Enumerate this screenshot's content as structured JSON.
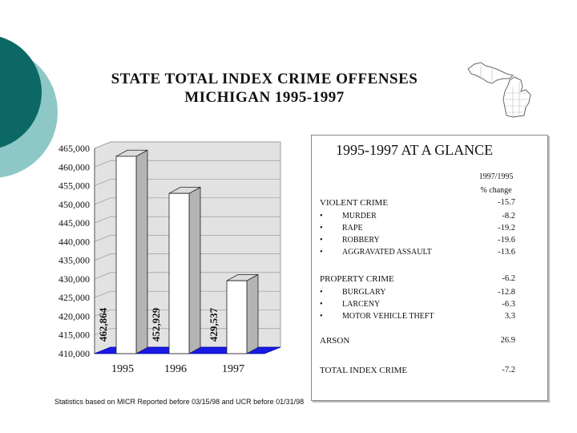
{
  "title": {
    "line1": "STATE TOTAL INDEX CRIME OFFENSES",
    "line2": "MICHIGAN 1995-1997"
  },
  "colors": {
    "teal_dark": "#0c6864",
    "teal_light": "#8ec8c6",
    "wall": "#e2e2e2",
    "floor": "#1a1ae6",
    "bar_face": "#ffffff",
    "bar_side": "#b4b4b4",
    "bar_top": "#dcdcdc"
  },
  "chart_data": {
    "type": "bar",
    "title": "",
    "categories": [
      "1995",
      "1996",
      "1997"
    ],
    "values": [
      462864,
      452929,
      429537
    ],
    "value_labels": [
      "462,864",
      "452,929",
      "429,537"
    ],
    "ylim": [
      410000,
      465000
    ],
    "yticks": [
      410000,
      415000,
      420000,
      425000,
      430000,
      435000,
      440000,
      445000,
      450000,
      455000,
      460000,
      465000
    ],
    "ytick_labels": [
      "410,000",
      "415,000",
      "420,000",
      "425,000",
      "430,000",
      "435,000",
      "440,000",
      "445,000",
      "450,000",
      "455,000",
      "460,000",
      "465,000"
    ],
    "xlabel": "",
    "ylabel": "",
    "grid": true
  },
  "glance": {
    "title": "1995-1997 AT A GLANCE",
    "header_line1": "1997/1995",
    "header_line2": "% change",
    "rows": [
      {
        "kind": "cat",
        "label": "VIOLENT CRIME",
        "value": "-15.7"
      },
      {
        "kind": "sub",
        "bullet": "•",
        "label": "MURDER",
        "value": "-8.2"
      },
      {
        "kind": "sub",
        "bullet": "•",
        "label": "RAPE",
        "value": "-19.2"
      },
      {
        "kind": "sub",
        "bullet": "•",
        "label": "ROBBERY",
        "value": "-19.6"
      },
      {
        "kind": "sub",
        "bullet": "•",
        "label": "AGGRAVATED ASSAULT",
        "value": "-13.6"
      },
      {
        "kind": "cat",
        "label": "PROPERTY CRIME",
        "value": "-6.2"
      },
      {
        "kind": "sub",
        "bullet": "•",
        "label": "BURGLARY",
        "value": "-12.8"
      },
      {
        "kind": "sub",
        "bullet": "•",
        "label": "LARCENY",
        "value": "-6.3"
      },
      {
        "kind": "sub",
        "bullet": "•",
        "label": "MOTOR VEHICLE THEFT",
        "value": "3.3"
      },
      {
        "kind": "cat",
        "label": "ARSON",
        "value": "26.9"
      },
      {
        "kind": "cat",
        "label": "TOTAL INDEX CRIME",
        "value": "-7.2"
      }
    ]
  },
  "footnote": "Statistics based on MICR Reported before 03/15/98 and UCR before 01/31/98"
}
